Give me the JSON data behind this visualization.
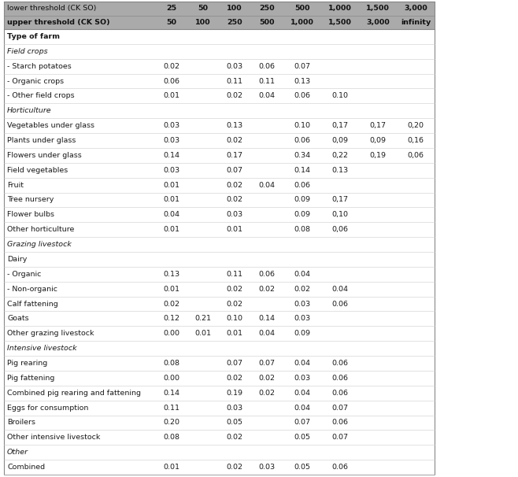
{
  "header_row1": [
    "lower threshold (CK SO)",
    "25",
    "50",
    "100",
    "250",
    "500",
    "1,000",
    "1,500",
    "3,000"
  ],
  "header_row2": [
    "upper threshold (CK SO)",
    "50",
    "100",
    "250",
    "500",
    "1,000",
    "1,500",
    "3,000",
    "infinity"
  ],
  "rows": [
    {
      "type": "section_header",
      "label": "Type of farm"
    },
    {
      "type": "category",
      "label": "Field crops"
    },
    {
      "type": "data",
      "label": "- Starch potatoes",
      "vals": [
        "0.02",
        "",
        "0.03",
        "0.06",
        "0.07",
        "",
        "",
        ""
      ]
    },
    {
      "type": "data",
      "label": "- Organic crops",
      "vals": [
        "0.06",
        "",
        "0.11",
        "0.11",
        "0.13",
        "",
        "",
        ""
      ]
    },
    {
      "type": "data",
      "label": "- Other field crops",
      "vals": [
        "0.01",
        "",
        "0.02",
        "0.04",
        "0.06",
        "0.10",
        "",
        ""
      ]
    },
    {
      "type": "category",
      "label": "Horticulture"
    },
    {
      "type": "data",
      "label": "Vegetables under glass",
      "vals": [
        "0.03",
        "",
        "0.13",
        "",
        "0.10",
        "0,17",
        "0,17",
        "0,20"
      ]
    },
    {
      "type": "data",
      "label": "Plants under glass",
      "vals": [
        "0.03",
        "",
        "0.02",
        "",
        "0.06",
        "0,09",
        "0,09",
        "0,16"
      ]
    },
    {
      "type": "data",
      "label": "Flowers under glass",
      "vals": [
        "0.14",
        "",
        "0.17",
        "",
        "0.34",
        "0,22",
        "0,19",
        "0,06"
      ]
    },
    {
      "type": "data",
      "label": "Field vegetables",
      "vals": [
        "0.03",
        "",
        "0.07",
        "",
        "0.14",
        "0.13",
        "",
        ""
      ]
    },
    {
      "type": "data",
      "label": "Fruit",
      "vals": [
        "0.01",
        "",
        "0.02",
        "0.04",
        "0.06",
        "",
        "",
        ""
      ]
    },
    {
      "type": "data",
      "label": "Tree nursery",
      "vals": [
        "0.01",
        "",
        "0.02",
        "",
        "0.09",
        "0,17",
        "",
        ""
      ]
    },
    {
      "type": "data",
      "label": "Flower bulbs",
      "vals": [
        "0.04",
        "",
        "0.03",
        "",
        "0.09",
        "0,10",
        "",
        ""
      ]
    },
    {
      "type": "data",
      "label": "Other horticulture",
      "vals": [
        "0.01",
        "",
        "0.01",
        "",
        "0.08",
        "0,06",
        "",
        ""
      ]
    },
    {
      "type": "category",
      "label": "Grazing livestock"
    },
    {
      "type": "category",
      "label": "Dairy"
    },
    {
      "type": "data",
      "label": "- Organic",
      "vals": [
        "0.13",
        "",
        "0.11",
        "0.06",
        "0.04",
        "",
        "",
        ""
      ]
    },
    {
      "type": "data",
      "label": "- Non-organic",
      "vals": [
        "0.01",
        "",
        "0.02",
        "0.02",
        "0.02",
        "0.04",
        "",
        ""
      ]
    },
    {
      "type": "data",
      "label": "Calf fattening",
      "vals": [
        "0.02",
        "",
        "0.02",
        "",
        "0.03",
        "0.06",
        "",
        ""
      ]
    },
    {
      "type": "data",
      "label": "Goats",
      "vals": [
        "0.12",
        "0.21",
        "0.10",
        "0.14",
        "0.03",
        "",
        "",
        ""
      ]
    },
    {
      "type": "data",
      "label": "Other grazing livestock",
      "vals": [
        "0.00",
        "0.01",
        "0.01",
        "0.04",
        "0.09",
        "",
        "",
        ""
      ]
    },
    {
      "type": "category",
      "label": "Intensive livestock"
    },
    {
      "type": "data",
      "label": "Pig rearing",
      "vals": [
        "0.08",
        "",
        "0.07",
        "0.07",
        "0.04",
        "0.06",
        "",
        ""
      ]
    },
    {
      "type": "data",
      "label": "Pig fattening",
      "vals": [
        "0.00",
        "",
        "0.02",
        "0.02",
        "0.03",
        "0.06",
        "",
        ""
      ]
    },
    {
      "type": "data",
      "label": "Combined pig rearing and fattening",
      "vals": [
        "0.14",
        "",
        "0.19",
        "0.02",
        "0.04",
        "0.06",
        "",
        ""
      ]
    },
    {
      "type": "data",
      "label": "Eggs for consumption",
      "vals": [
        "0.11",
        "",
        "0.03",
        "",
        "0.04",
        "0.07",
        "",
        ""
      ]
    },
    {
      "type": "data",
      "label": "Broilers",
      "vals": [
        "0.20",
        "",
        "0.05",
        "",
        "0.07",
        "0.06",
        "",
        ""
      ]
    },
    {
      "type": "data",
      "label": "Other intensive livestock",
      "vals": [
        "0.08",
        "",
        "0.02",
        "",
        "0.05",
        "0.07",
        "",
        ""
      ]
    },
    {
      "type": "category",
      "label": "Other"
    },
    {
      "type": "data",
      "label": "Combined",
      "vals": [
        "0.01",
        "",
        "0.02",
        "0.03",
        "0.05",
        "0.06",
        "",
        ""
      ]
    }
  ],
  "header_bg": "#aaaaaa",
  "category_italic_rows": [
    "Field crops",
    "Horticulture",
    "Grazing livestock",
    "Intensive livestock",
    "Other"
  ],
  "section_bold_rows": [
    "Type of farm"
  ],
  "non_italic_category": [
    "Dairy"
  ],
  "font_size": 6.8,
  "header_font_size": 6.8,
  "line_color": "#bbbbbb",
  "text_color": "#1a1a1a",
  "bg_white": "#ffffff",
  "header_text_color": "#111111"
}
